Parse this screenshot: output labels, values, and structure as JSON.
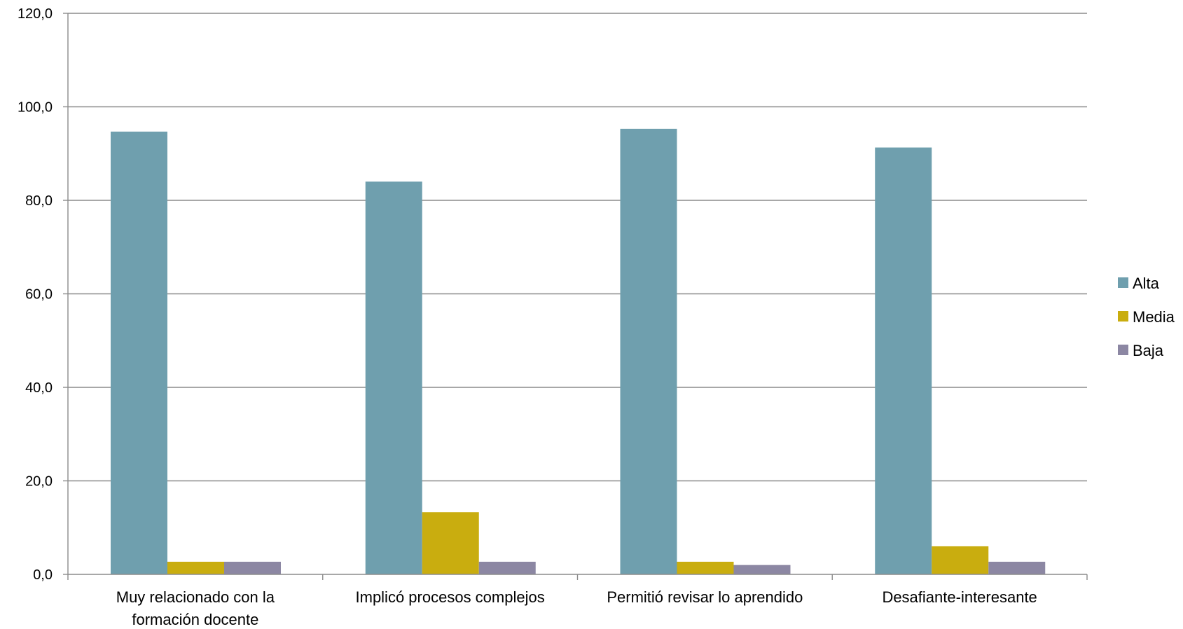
{
  "chart_data": {
    "type": "bar",
    "title": "",
    "xlabel": "",
    "ylabel": "",
    "categories": [
      [
        "Muy relacionado con la",
        "formación docente"
      ],
      [
        "Implicó procesos complejos"
      ],
      [
        "Permitió revisar lo aprendido"
      ],
      [
        "Desafiante-interesante"
      ]
    ],
    "series": [
      {
        "name": "Alta",
        "color": "#6f9fae",
        "values": [
          94.7,
          84.0,
          95.3,
          91.3
        ]
      },
      {
        "name": "Media",
        "color": "#c9ad0f",
        "values": [
          2.7,
          13.3,
          2.7,
          6.0
        ]
      },
      {
        "name": "Baja",
        "color": "#8c87a3",
        "values": [
          2.7,
          2.7,
          2.0,
          2.7
        ]
      }
    ],
    "ylim": [
      0,
      120
    ],
    "yticks": [
      "0,0",
      "20,0",
      "40,0",
      "60,0",
      "80,0",
      "100,0",
      "120,0"
    ],
    "ytick_values": [
      0,
      20,
      40,
      60,
      80,
      100,
      120
    ],
    "grid": true,
    "legend_position": "right"
  }
}
